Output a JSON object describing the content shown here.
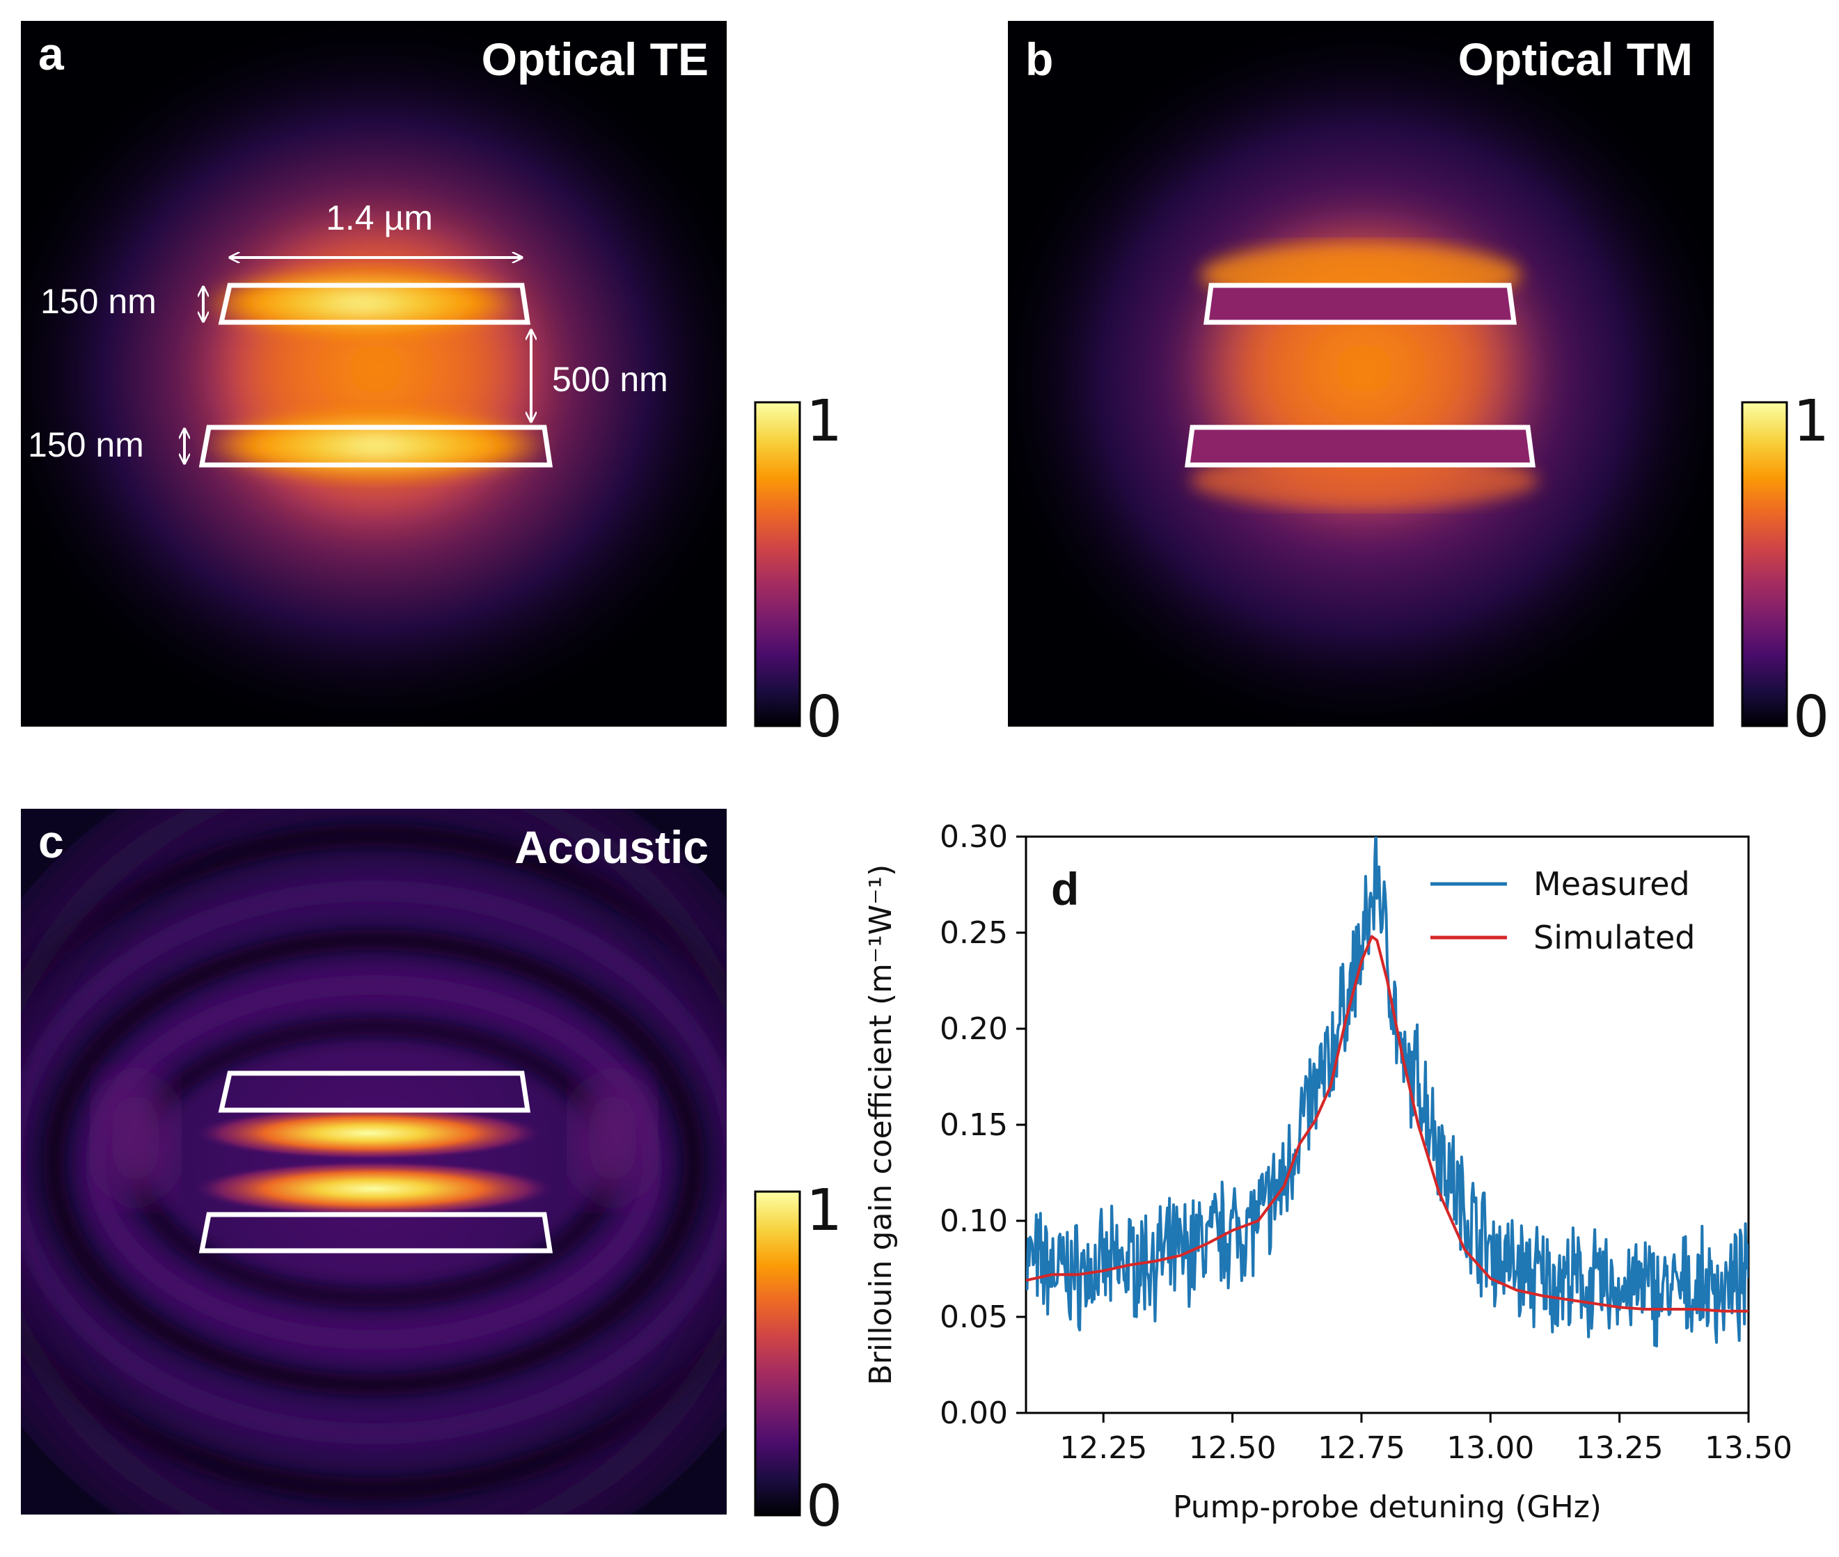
{
  "panels": {
    "a": {
      "letter": "a",
      "title": "Optical TE"
    },
    "b": {
      "letter": "b",
      "title": "Optical TM"
    },
    "c": {
      "letter": "c",
      "title": "Acoustic"
    },
    "d": {
      "letter": "d"
    }
  },
  "annotations": {
    "width": "1.4 µm",
    "top_thickness": "150 nm",
    "bottom_thickness": "150 nm",
    "gap": "500 nm"
  },
  "colorbar": {
    "max_label": "1",
    "min_label": "0"
  },
  "colormap": [
    "#000004",
    "#1b0c41",
    "#4a0c6b",
    "#781c6d",
    "#a52c60",
    "#cf4446",
    "#ed6925",
    "#fb9b06",
    "#f7d13d",
    "#fcffa4"
  ],
  "chart_data": {
    "type": "line",
    "xlabel": "Pump-probe detuning (GHz)",
    "ylabel": "Brillouin gain coefficient (m⁻¹W⁻¹)",
    "xlim": [
      12.1,
      13.5
    ],
    "ylim": [
      0.0,
      0.3
    ],
    "xticks": [
      "12.25",
      "12.50",
      "12.75",
      "13.00",
      "13.25",
      "13.50"
    ],
    "yticks": [
      "0.00",
      "0.05",
      "0.10",
      "0.15",
      "0.20",
      "0.25",
      "0.30"
    ],
    "legend_position": "top-right",
    "series": [
      {
        "name": "Measured",
        "color": "#1f77b4",
        "x": [
          12.1,
          12.15,
          12.2,
          12.25,
          12.3,
          12.35,
          12.4,
          12.45,
          12.5,
          12.55,
          12.6,
          12.63,
          12.66,
          12.69,
          12.72,
          12.75,
          12.77,
          12.78,
          12.8,
          12.83,
          12.86,
          12.9,
          12.95,
          13.0,
          13.05,
          13.1,
          13.15,
          13.2,
          13.25,
          13.3,
          13.35,
          13.4,
          13.45,
          13.5
        ],
        "y": [
          0.08,
          0.075,
          0.072,
          0.075,
          0.078,
          0.08,
          0.083,
          0.09,
          0.095,
          0.1,
          0.12,
          0.15,
          0.165,
          0.185,
          0.215,
          0.24,
          0.265,
          0.285,
          0.24,
          0.175,
          0.175,
          0.14,
          0.105,
          0.085,
          0.075,
          0.07,
          0.068,
          0.066,
          0.065,
          0.065,
          0.063,
          0.065,
          0.064,
          0.068
        ]
      },
      {
        "name": "Simulated",
        "color": "#d62728",
        "x": [
          12.1,
          12.15,
          12.2,
          12.25,
          12.3,
          12.35,
          12.4,
          12.45,
          12.5,
          12.55,
          12.6,
          12.63,
          12.66,
          12.69,
          12.72,
          12.75,
          12.77,
          12.78,
          12.8,
          12.83,
          12.86,
          12.9,
          12.95,
          13.0,
          13.05,
          13.1,
          13.15,
          13.2,
          13.25,
          13.3,
          13.35,
          13.4,
          13.45,
          13.5
        ],
        "y": [
          0.069,
          0.072,
          0.072,
          0.074,
          0.077,
          0.079,
          0.082,
          0.088,
          0.095,
          0.1,
          0.118,
          0.14,
          0.152,
          0.17,
          0.205,
          0.235,
          0.248,
          0.246,
          0.225,
          0.185,
          0.15,
          0.115,
          0.085,
          0.07,
          0.064,
          0.061,
          0.059,
          0.057,
          0.055,
          0.054,
          0.054,
          0.054,
          0.053,
          0.053
        ]
      }
    ]
  }
}
